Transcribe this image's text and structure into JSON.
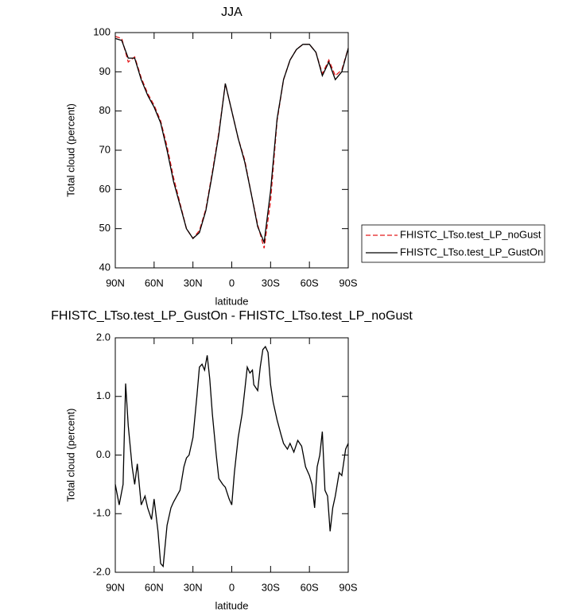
{
  "chart_data": [
    {
      "type": "line",
      "title": "JJA",
      "xlabel": "latitude",
      "ylabel": "Total cloud (percent)",
      "xlim": [
        90,
        -90
      ],
      "xticks": [
        {
          "value": 90,
          "label": "90N"
        },
        {
          "value": 60,
          "label": "60N"
        },
        {
          "value": 30,
          "label": "30N"
        },
        0,
        {
          "value": -30,
          "label": "30S"
        },
        {
          "value": -60,
          "label": "60S"
        },
        {
          "value": -90,
          "label": "90S"
        }
      ],
      "ylim": [
        40,
        100
      ],
      "yticks": [
        40,
        50,
        60,
        70,
        80,
        90,
        100
      ],
      "legend": "right",
      "x": [
        90,
        85,
        80,
        75,
        70,
        65,
        60,
        55,
        50,
        45,
        40,
        35,
        30,
        25,
        20,
        15,
        10,
        5,
        0,
        -5,
        -10,
        -15,
        -20,
        -25,
        -30,
        -35,
        -40,
        -45,
        -50,
        -55,
        -60,
        -65,
        -70,
        -75,
        -80,
        -85,
        -90
      ],
      "series": [
        {
          "name": "FHISTC_LTso.test_LP_noGust",
          "color": "#e41a1c",
          "dash": true,
          "values": [
            99,
            98.5,
            92.5,
            93.8,
            88.5,
            84.5,
            81.5,
            77.5,
            71,
            63,
            56.5,
            50,
            47.5,
            49.5,
            55,
            64.5,
            74.5,
            87,
            80,
            73,
            67.5,
            59,
            51,
            45,
            57,
            77.5,
            88,
            93,
            95.7,
            97,
            97,
            95,
            89.5,
            93,
            89,
            90.5,
            96
          ]
        },
        {
          "name": "FHISTC_LTso.test_LP_GustOn",
          "color": "#000000",
          "dash": false,
          "values": [
            98.5,
            98,
            93.5,
            93.5,
            88,
            84,
            81,
            77,
            70,
            62,
            56,
            50,
            47.5,
            49,
            54.6,
            64,
            74,
            87,
            80,
            73,
            67,
            59,
            50.5,
            46.5,
            59.6,
            78,
            88,
            93,
            95.7,
            97,
            97,
            95,
            89,
            92.5,
            88,
            90,
            96
          ]
        }
      ]
    },
    {
      "type": "line",
      "title": "FHISTC_LTso.test_LP_GustOn - FHISTC_LTso.test_LP_noGust",
      "xlabel": "latitude",
      "ylabel": "Total cloud (percent)",
      "xlim": [
        90,
        -90
      ],
      "xticks": [
        {
          "value": 90,
          "label": "90N"
        },
        {
          "value": 60,
          "label": "60N"
        },
        {
          "value": 30,
          "label": "30N"
        },
        0,
        {
          "value": -30,
          "label": "30S"
        },
        {
          "value": -60,
          "label": "60S"
        },
        {
          "value": -90,
          "label": "90S"
        }
      ],
      "ylim": [
        -2,
        2
      ],
      "yticks": [
        {
          "value": -2,
          "label": "-2.0"
        },
        {
          "value": -1,
          "label": "-1.0"
        },
        {
          "value": 0,
          "label": "0.0"
        },
        {
          "value": 1,
          "label": "1.0"
        },
        {
          "value": 2,
          "label": "2.0"
        }
      ],
      "x": [
        90,
        87,
        84,
        82,
        80,
        77,
        75,
        73,
        70,
        67,
        65,
        62,
        60,
        57,
        55,
        53,
        50,
        47,
        45,
        40,
        37,
        35,
        33,
        30,
        27,
        25,
        23,
        21,
        19,
        17,
        15,
        12,
        10,
        7,
        5,
        2,
        0,
        -2,
        -5,
        -8,
        -10,
        -12,
        -14,
        -16,
        -17,
        -20,
        -22,
        -24,
        -26,
        -28,
        -30,
        -32,
        -35,
        -38,
        -40,
        -43,
        -45,
        -48,
        -51,
        -54,
        -57,
        -60,
        -62,
        -64,
        -66,
        -68,
        -70,
        -72,
        -74,
        -76,
        -78,
        -80,
        -83,
        -85,
        -88,
        -90
      ],
      "series": [
        {
          "color": "#000000",
          "dash": false,
          "values": [
            -0.5,
            -0.85,
            -0.5,
            1.22,
            0.5,
            -0.2,
            -0.5,
            -0.15,
            -0.85,
            -0.7,
            -0.9,
            -1.1,
            -0.75,
            -1.3,
            -1.85,
            -1.9,
            -1.2,
            -0.9,
            -0.8,
            -0.6,
            -0.2,
            -0.05,
            0.0,
            0.3,
            1.0,
            1.5,
            1.55,
            1.45,
            1.7,
            1.3,
            0.7,
            0.0,
            -0.4,
            -0.5,
            -0.55,
            -0.75,
            -0.85,
            -0.3,
            0.3,
            0.7,
            1.1,
            1.5,
            1.4,
            1.45,
            1.2,
            1.1,
            1.5,
            1.8,
            1.85,
            1.75,
            1.2,
            0.9,
            0.6,
            0.35,
            0.2,
            0.1,
            0.2,
            0.05,
            0.25,
            0.15,
            -0.2,
            -0.35,
            -0.5,
            -0.9,
            -0.2,
            0.0,
            0.4,
            -0.6,
            -0.7,
            -1.3,
            -0.9,
            -0.7,
            -0.3,
            -0.35,
            0.1,
            0.2
          ]
        }
      ]
    }
  ]
}
